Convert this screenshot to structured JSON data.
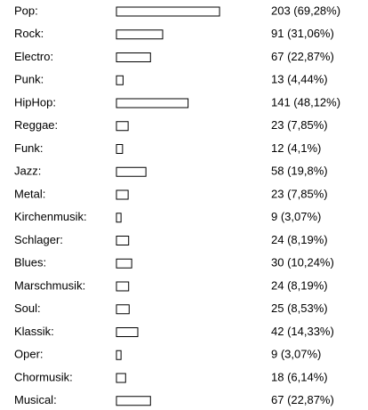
{
  "chart_data": {
    "type": "bar",
    "orientation": "horizontal",
    "categories": [
      "Pop:",
      "Rock:",
      "Electro:",
      "Punk:",
      "HipHop:",
      "Reggae:",
      "Funk:",
      "Jazz:",
      "Metal:",
      "Kirchenmusik:",
      "Schlager:",
      "Blues:",
      "Marschmusik:",
      "Soul:",
      "Klassik:",
      "Oper:",
      "Chormusik:",
      "Musical:"
    ],
    "values": [
      203,
      91,
      67,
      13,
      141,
      23,
      12,
      58,
      23,
      9,
      24,
      30,
      24,
      25,
      42,
      9,
      18,
      67
    ],
    "value_labels": [
      "203 (69,28%)",
      "91 (31,06%)",
      "67 (22,87%)",
      "13 (4,44%)",
      "141 (48,12%)",
      "23 (7,85%)",
      "12 (4,1%)",
      "58 (19,8%)",
      "23 (7,85%)",
      "9 (3,07%)",
      "24 (8,19%)",
      "30 (10,24%)",
      "24 (8,19%)",
      "25 (8,53%)",
      "42 (14,33%)",
      "9 (3,07%)",
      "18 (6,14%)",
      "67 (22,87%)"
    ],
    "color": "#ffffff"
  }
}
